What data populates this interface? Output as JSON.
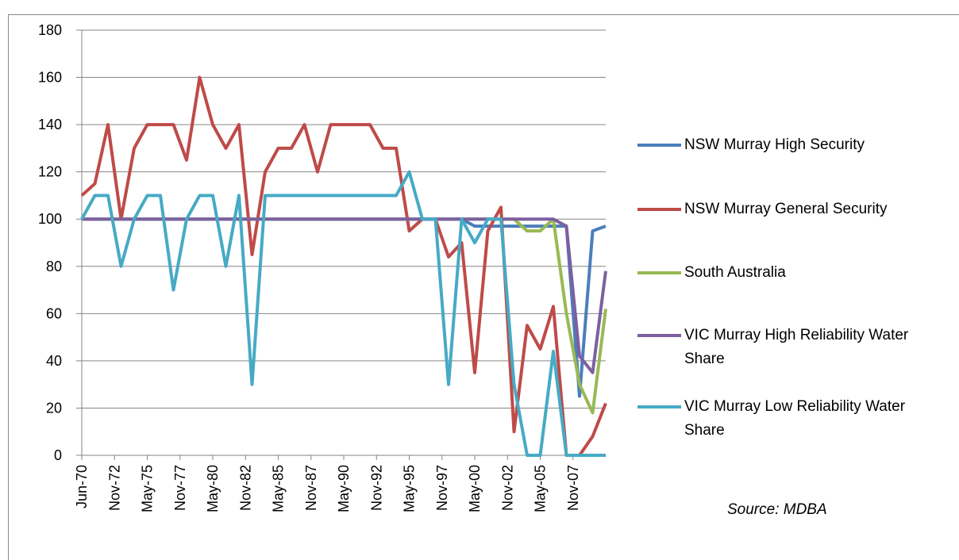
{
  "chart_data": {
    "type": "line",
    "source": "Source:  MDBA",
    "x": [
      1970,
      1971,
      1972,
      1973,
      1974,
      1975,
      1976,
      1977,
      1978,
      1979,
      1980,
      1981,
      1982,
      1983,
      1984,
      1985,
      1986,
      1987,
      1988,
      1989,
      1990,
      1991,
      1992,
      1993,
      1994,
      1995,
      1996,
      1997,
      1998,
      1999,
      2000,
      2001,
      2002,
      2003,
      2004,
      2005,
      2006,
      2007,
      2008,
      2009,
      2010
    ],
    "xlim": [
      1970,
      2010
    ],
    "xticks": [
      {
        "value": 1970,
        "label": "Jun-70"
      },
      {
        "value": 1972.5,
        "label": "Nov-72"
      },
      {
        "value": 1975,
        "label": "May-75"
      },
      {
        "value": 1977.5,
        "label": "Nov-77"
      },
      {
        "value": 1980,
        "label": "May-80"
      },
      {
        "value": 1982.5,
        "label": "Nov-82"
      },
      {
        "value": 1985,
        "label": "May-85"
      },
      {
        "value": 1987.5,
        "label": "Nov-87"
      },
      {
        "value": 1990,
        "label": "May-90"
      },
      {
        "value": 1992.5,
        "label": "Nov-92"
      },
      {
        "value": 1995,
        "label": "May-95"
      },
      {
        "value": 1997.5,
        "label": "Nov-97"
      },
      {
        "value": 2000,
        "label": "May-00"
      },
      {
        "value": 2002.5,
        "label": "Nov-02"
      },
      {
        "value": 2005,
        "label": "May-05"
      },
      {
        "value": 2007.5,
        "label": "Nov-07"
      }
    ],
    "ylim": [
      0,
      180
    ],
    "yticks": [
      0,
      20,
      40,
      60,
      80,
      100,
      120,
      140,
      160,
      180
    ],
    "grid": true,
    "series": [
      {
        "name": "NSW Murray High Security",
        "color": "#4a7ebb",
        "values": [
          100,
          100,
          100,
          100,
          100,
          100,
          100,
          100,
          100,
          100,
          100,
          100,
          100,
          100,
          100,
          100,
          100,
          100,
          100,
          100,
          100,
          100,
          100,
          100,
          100,
          100,
          100,
          100,
          100,
          100,
          97,
          97,
          97,
          97,
          97,
          97,
          97,
          97,
          25,
          95,
          97
        ]
      },
      {
        "name": "NSW Murray General Security",
        "color": "#be4b48",
        "values": [
          110,
          115,
          140,
          100,
          130,
          140,
          140,
          140,
          125,
          160,
          140,
          130,
          140,
          85,
          120,
          130,
          130,
          140,
          120,
          140,
          140,
          140,
          140,
          130,
          130,
          95,
          100,
          100,
          84,
          90,
          35,
          95,
          105,
          10,
          55,
          45,
          63,
          0,
          0,
          8,
          22
        ]
      },
      {
        "name": "South Australia",
        "color": "#98b954",
        "values": [
          100,
          100,
          100,
          100,
          100,
          100,
          100,
          100,
          100,
          100,
          100,
          100,
          100,
          100,
          100,
          100,
          100,
          100,
          100,
          100,
          100,
          100,
          100,
          100,
          100,
          100,
          100,
          100,
          100,
          100,
          100,
          100,
          100,
          100,
          95,
          95,
          100,
          60,
          30,
          18,
          62
        ]
      },
      {
        "name": "VIC Murray High Reliability Water Share",
        "color": "#7d60a0",
        "values": [
          100,
          100,
          100,
          100,
          100,
          100,
          100,
          100,
          100,
          100,
          100,
          100,
          100,
          100,
          100,
          100,
          100,
          100,
          100,
          100,
          100,
          100,
          100,
          100,
          100,
          100,
          100,
          100,
          100,
          100,
          100,
          100,
          100,
          100,
          100,
          100,
          100,
          97,
          42,
          35,
          78
        ]
      },
      {
        "name": "VIC Murray Low Reliability Water Share",
        "color": "#46aac5",
        "values": [
          100,
          110,
          110,
          80,
          100,
          110,
          110,
          70,
          100,
          110,
          110,
          80,
          110,
          30,
          110,
          110,
          110,
          110,
          110,
          110,
          110,
          110,
          110,
          110,
          110,
          120,
          100,
          100,
          30,
          100,
          90,
          100,
          100,
          30,
          0,
          0,
          44,
          0,
          0,
          0,
          0
        ]
      }
    ]
  }
}
